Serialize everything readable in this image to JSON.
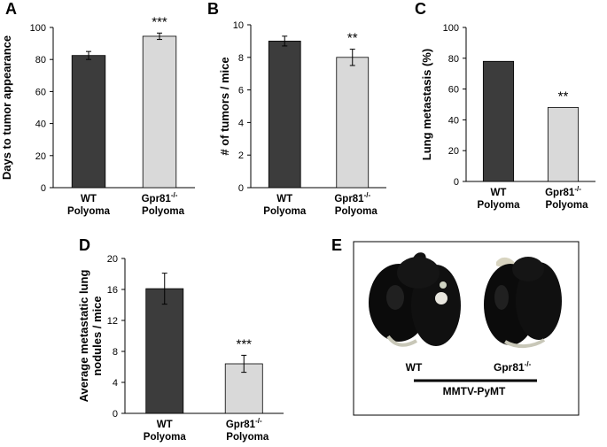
{
  "chart_data": [
    {
      "panel": "A",
      "type": "bar",
      "categories": [
        [
          "WT",
          "Polyoma"
        ],
        [
          "Gpr81",
          "-/-",
          "Polyoma"
        ]
      ],
      "values": [
        82.5,
        94.5
      ],
      "errors": [
        2.5,
        2.0
      ],
      "bar_colors": [
        "#3c3c3c",
        "#d9d9d9"
      ],
      "annotations": [
        "",
        "***"
      ],
      "ylabel": "Days to tumor appearance",
      "ylim": [
        0,
        100
      ],
      "yticks": [
        0,
        20,
        40,
        60,
        80,
        100
      ]
    },
    {
      "panel": "B",
      "type": "bar",
      "categories": [
        [
          "WT",
          "Polyoma"
        ],
        [
          "Gpr81",
          "-/-",
          "Polyoma"
        ]
      ],
      "values": [
        9.0,
        8.0
      ],
      "errors": [
        0.3,
        0.5
      ],
      "bar_colors": [
        "#3c3c3c",
        "#d9d9d9"
      ],
      "annotations": [
        "",
        "**"
      ],
      "ylabel": "# of tumors / mice",
      "ylim": [
        0,
        10
      ],
      "yticks": [
        0,
        2,
        4,
        6,
        8,
        10
      ]
    },
    {
      "panel": "C",
      "type": "bar",
      "categories": [
        [
          "WT",
          "Polyoma"
        ],
        [
          "Gpr81",
          "-/-",
          "Polyoma"
        ]
      ],
      "values": [
        78,
        48
      ],
      "errors": [
        0,
        0
      ],
      "bar_colors": [
        "#3c3c3c",
        "#d9d9d9"
      ],
      "annotations": [
        "",
        "**"
      ],
      "ylabel": "Lung metastasis (%)",
      "ylim": [
        0,
        100
      ],
      "yticks": [
        0,
        20,
        40,
        60,
        80,
        100
      ]
    },
    {
      "panel": "D",
      "type": "bar",
      "categories": [
        [
          "WT",
          "Polyoma"
        ],
        [
          "Gpr81",
          "-/-",
          "Polyoma"
        ]
      ],
      "values": [
        16.1,
        6.4
      ],
      "errors": [
        2.0,
        1.1
      ],
      "bar_colors": [
        "#3c3c3c",
        "#d9d9d9"
      ],
      "annotations": [
        "",
        "***"
      ],
      "ylabel": [
        "Average metastatic lung",
        "nodules / mice"
      ],
      "ylim": [
        0,
        20
      ],
      "yticks": [
        0,
        4,
        8,
        12,
        16,
        20
      ]
    }
  ],
  "panel_e": {
    "label": "E",
    "left_caption": "WT",
    "right_caption_base": "Gpr81",
    "right_caption_sup": "-/-",
    "group_caption": "MMTV-PyMT"
  }
}
